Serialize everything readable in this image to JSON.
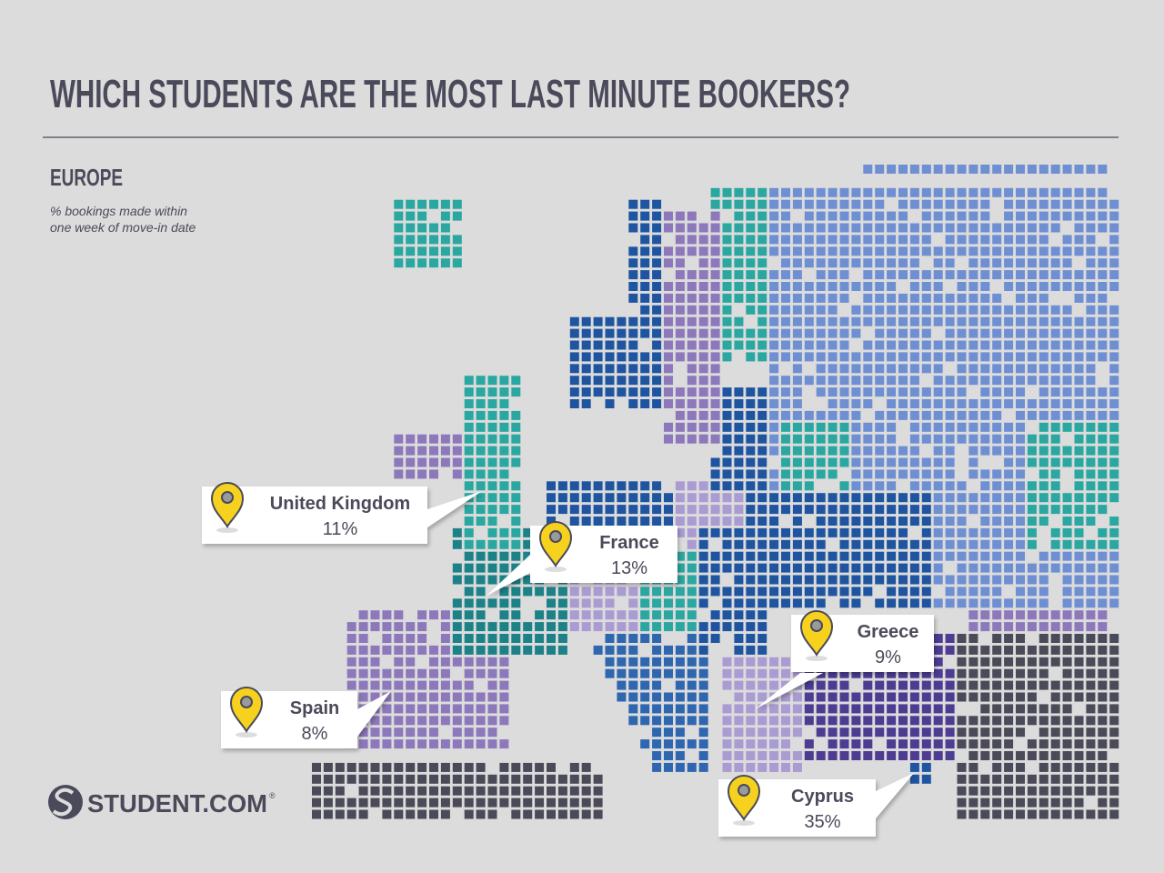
{
  "header": {
    "title": "WHICH STUDENTS ARE THE MOST LAST MINUTE BOOKERS?"
  },
  "section": {
    "title": "EUROPE",
    "subtitle_lines": [
      "% bookings made within",
      "one week of move-in date"
    ]
  },
  "callouts": [
    {
      "name": "United Kingdom",
      "value": "11%"
    },
    {
      "name": "France",
      "value": "13%"
    },
    {
      "name": "Greece",
      "value": "9%"
    },
    {
      "name": "Spain",
      "value": "8%"
    },
    {
      "name": "Cyprus",
      "value": "35%"
    }
  ],
  "logo": {
    "text": "STUDENT.COM",
    "mark": "®"
  }
}
